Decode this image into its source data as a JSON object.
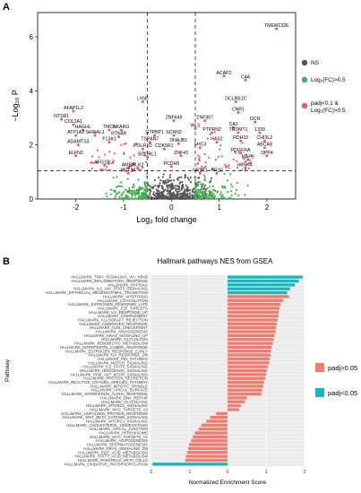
{
  "panels": {
    "a": "A",
    "b": "B"
  },
  "chart_data": [
    {
      "type": "scatter",
      "xlabel": "Log₂ fold change",
      "ylabel": "−Log₁₀ P",
      "xlim": [
        -2.8,
        2.6
      ],
      "ylim": [
        0,
        6.9
      ],
      "xticks": [
        -2,
        -1,
        0,
        1,
        2
      ],
      "yticks": [
        0,
        2,
        4,
        6
      ],
      "thresholds": {
        "log2fc": [
          -0.5,
          0.5
        ],
        "neglog10p": 1.05
      },
      "legend": {
        "position": "right",
        "entries": [
          {
            "name": "NS",
            "color": "#555555"
          },
          {
            "name": "Log₂(FC)>0.5",
            "color": "#3cb44b"
          },
          {
            "name": "padj<0.1 & Log₂(FC)>0.5",
            "color": "#ee5566"
          }
        ]
      },
      "labeled_points": [
        {
          "label": "TMEM132E",
          "x": 2.2,
          "y": 6.3
        },
        {
          "label": "ACAP2",
          "x": 1.1,
          "y": 4.55
        },
        {
          "label": "C4A",
          "x": 1.55,
          "y": 4.4
        },
        {
          "label": "DCLRE1C",
          "x": 1.35,
          "y": 3.6
        },
        {
          "label": "CNR1",
          "x": 1.4,
          "y": 3.2
        },
        {
          "label": "DCN",
          "x": 1.75,
          "y": 2.85
        },
        {
          "label": "LY6E",
          "x": -0.6,
          "y": 3.6
        },
        {
          "label": "AFAP1L2",
          "x": -2.05,
          "y": 3.25
        },
        {
          "label": "NTSR1",
          "x": -2.3,
          "y": 2.95
        },
        {
          "label": "COL2A1",
          "x": -2.05,
          "y": 2.75
        },
        {
          "label": "HAGHL",
          "x": -1.85,
          "y": 2.55
        },
        {
          "label": "TMC6",
          "x": -1.3,
          "y": 2.55
        },
        {
          "label": "NKAIN1",
          "x": -1.05,
          "y": 2.55
        },
        {
          "label": "ATP1A2",
          "x": -2.0,
          "y": 2.35
        },
        {
          "label": "SHISAL1",
          "x": -1.6,
          "y": 2.35
        },
        {
          "label": "RTN4R",
          "x": -1.1,
          "y": 2.3
        },
        {
          "label": "GTPBP1",
          "x": -0.35,
          "y": 2.35
        },
        {
          "label": "SCRN2",
          "x": 0.05,
          "y": 2.35
        },
        {
          "label": "ZNF649",
          "x": 0.05,
          "y": 2.9
        },
        {
          "label": "ZNF367",
          "x": 0.7,
          "y": 2.9
        },
        {
          "label": "WLS",
          "x": 0.5,
          "y": 2.6
        },
        {
          "label": "CA2",
          "x": 1.3,
          "y": 2.65
        },
        {
          "label": "PTPRN2",
          "x": 0.85,
          "y": 2.45
        },
        {
          "label": "TRDMT1",
          "x": 1.4,
          "y": 2.45
        },
        {
          "label": "1339",
          "x": 1.85,
          "y": 2.45
        },
        {
          "label": "ADAMTS3",
          "x": -1.95,
          "y": 2.0
        },
        {
          "label": "F13A1",
          "x": -1.3,
          "y": 2.1
        },
        {
          "label": "TSPAN7",
          "x": -0.45,
          "y": 2.1
        },
        {
          "label": "DNAJB1",
          "x": 0.15,
          "y": 2.05
        },
        {
          "label": "HAS2",
          "x": 0.95,
          "y": 2.1
        },
        {
          "label": "RDH10",
          "x": 1.45,
          "y": 2.15
        },
        {
          "label": "CHI3L2",
          "x": 1.95,
          "y": 2.15
        },
        {
          "label": "POLR1D",
          "x": -0.6,
          "y": 1.85
        },
        {
          "label": "CDK5R1",
          "x": -0.15,
          "y": 1.85
        },
        {
          "label": "SHC3",
          "x": 0.6,
          "y": 1.9
        },
        {
          "label": "ABCA8",
          "x": 1.95,
          "y": 1.9
        },
        {
          "label": "ELFN2",
          "x": -2.0,
          "y": 1.6
        },
        {
          "label": "BCORL1",
          "x": -0.5,
          "y": 1.55
        },
        {
          "label": "ZNF43",
          "x": 0.2,
          "y": 1.6
        },
        {
          "label": "PDGFRA",
          "x": 1.45,
          "y": 1.7
        },
        {
          "label": "DPP4",
          "x": 2.0,
          "y": 1.6
        },
        {
          "label": "MAP2",
          "x": 1.6,
          "y": 1.45
        },
        {
          "label": "AFG1BL2",
          "x": -1.4,
          "y": 1.25
        },
        {
          "label": "AMBN",
          "x": -0.9,
          "y": 1.15
        },
        {
          "label": "PLK2",
          "x": -0.7,
          "y": 1.15
        },
        {
          "label": "PCDH9",
          "x": 0.0,
          "y": 1.2
        },
        {
          "label": "WNK4",
          "x": 1.55,
          "y": 1.15
        },
        {
          "label": "MZT2A",
          "x": -0.9,
          "y": 0.95
        },
        {
          "label": "NR2F1",
          "x": 0.6,
          "y": 0.95
        },
        {
          "label": "PR20",
          "x": 0.95,
          "y": 0.95
        }
      ]
    },
    {
      "type": "bar",
      "orientation": "horizontal",
      "title": "Hallmark pathways NES from GSEA",
      "xlabel": "Normalized Enrichment Score",
      "ylabel": "Pathway",
      "xlim": [
        -2,
        2
      ],
      "xticks": [
        -2,
        -1,
        0,
        1,
        2
      ],
      "legend": {
        "position": "right",
        "entries": [
          {
            "name": "padj>0.05",
            "color": "#f47a6d"
          },
          {
            "name": "padj<0.05",
            "color": "#15b8c0"
          }
        ]
      },
      "categories": [
        "HALLMARK_TNFA_SIGNALING_VIA_NFKB",
        "HALLMARK_INFLAMMATORY_RESPONSE",
        "HALLMARK_HYPOXIA",
        "HALLMARK_IL6_JAK_STAT3_SIGNALING",
        "HALLMARK_EPITHELIAL_MESENCHYMAL_TRANSITION",
        "HALLMARK_APOPTOSIS",
        "HALLMARK_COAGULATION",
        "HALLMARK_ESTROGEN_RESPONSE_LATE",
        "HALLMARK_E2F_TARGETS",
        "HALLMARK_UV_RESPONSE_UP",
        "HALLMARK_COMPLEMENT",
        "HALLMARK_ALLOGRAFT_REJECTION",
        "HALLMARK_ANDROGEN_RESPONSE",
        "HALLMARK_G2M_CHECKPOINT",
        "HALLMARK_ANGIOGENESIS",
        "HALLMARK_KRAS_SIGNALING_UP",
        "HALLMARK_GLYCOLYSIS",
        "HALLMARK_XENOBIOTIC_METABOLISM",
        "HALLMARK_INTERFERON_GAMMA_RESPONSE",
        "HALLMARK_ESTROGEN_RESPONSE_EARLY",
        "HALLMARK_UV_RESPONSE_DN",
        "HALLMARK_P53_PATHWAY",
        "HALLMARK_NOTCH_SIGNALING",
        "HALLMARK_IL2_STAT5_SIGNALING",
        "HALLMARK_HEDGEHOG_SIGNALING",
        "HALLMARK_PI3K_AKT_MTOR_SIGNALING",
        "HALLMARK_PROTEIN_SECRETION",
        "HALLMARK_REACTIVE_OXYGEN_SPECIES_PATHWAY",
        "HALLMARK_MITOTIC_SPINDLE",
        "HALLMARK_APICAL_SURFACE",
        "HALLMARK_INTERFERON_ALPHA_RESPONSE",
        "HALLMARK_DNA_REPAIR",
        "HALLMARK_GLYCOLYSIS",
        "HALLMARK_MTORC1_SIGNALING",
        "HALLMARK_MYC_TARGETS_V2",
        "HALLMARK_UNFOLDED_PROTEIN_RESPONSE",
        "HALLMARK_WNT_BETA_CATENIN_SIGNALING",
        "HALLMARK_MTORC1_SIGNALING",
        "HALLMARK_CHOLESTEROL_HOMEOSTASIS",
        "HALLMARK_APICAL_JUNCTION",
        "HALLMARK_PEROXISOME",
        "HALLMARK_MYC_TARGETS_V1",
        "HALLMARK_ADIPOGENESIS",
        "HALLMARK_SPERMATOGENESIS",
        "HALLMARK_KRAS_SIGNALING_DN",
        "HALLMARK_BILE_ACID_METABOLISM",
        "HALLMARK_FATTY_ACID_METABOLISM",
        "HALLMARK_PANCREAS_BETA_CELLS",
        "HALLMARK_OXIDATIVE_PHOSPHORYLATION"
      ],
      "values": [
        1.95,
        1.85,
        1.75,
        1.62,
        1.55,
        1.6,
        1.45,
        1.38,
        1.35,
        1.33,
        1.32,
        1.3,
        1.28,
        1.26,
        1.25,
        1.22,
        1.2,
        1.18,
        1.15,
        1.13,
        1.12,
        1.1,
        1.08,
        1.05,
        1.02,
        1.0,
        0.98,
        0.95,
        0.93,
        0.9,
        0.88,
        0.5,
        0.45,
        0.35,
        0.3,
        -0.3,
        -0.45,
        -0.55,
        -0.68,
        -0.75,
        -0.85,
        -0.9,
        -0.95,
        -1.0,
        -1.02,
        -1.05,
        -1.08,
        -1.1,
        -1.95
      ],
      "significant": [
        true,
        true,
        true,
        true,
        true,
        false,
        false,
        false,
        false,
        false,
        false,
        false,
        false,
        false,
        false,
        false,
        false,
        false,
        false,
        false,
        false,
        false,
        false,
        false,
        false,
        false,
        false,
        false,
        false,
        false,
        false,
        false,
        false,
        false,
        false,
        false,
        false,
        false,
        false,
        false,
        false,
        false,
        false,
        false,
        false,
        false,
        false,
        false,
        true
      ]
    }
  ]
}
